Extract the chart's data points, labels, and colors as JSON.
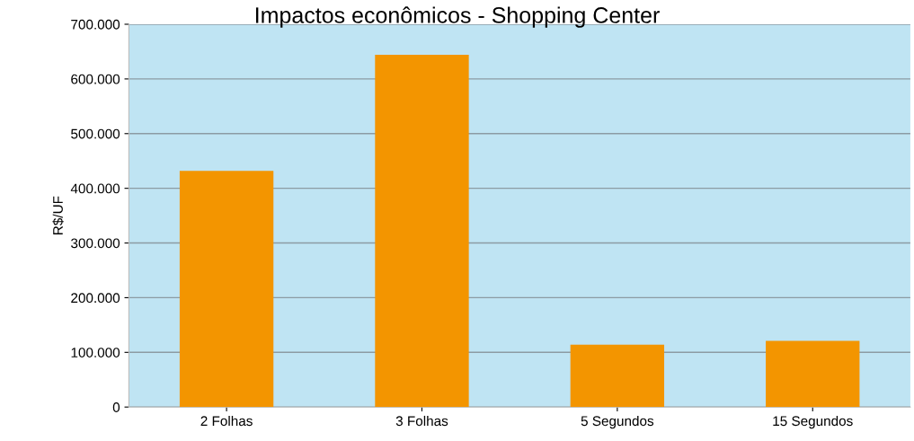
{
  "chart_data": {
    "type": "bar",
    "title": "Impactos econômicos - Shopping Center",
    "ylabel": "R$/UF",
    "categories": [
      "2 Folhas",
      "3 Folhas",
      "5 Segundos",
      "15 Segundos"
    ],
    "values": [
      432000,
      644000,
      114000,
      121000
    ],
    "color": "#f39500",
    "ylim": [
      0,
      700000
    ],
    "yticks": [
      {
        "value": 0,
        "label": "0"
      },
      {
        "value": 100000,
        "label": "100.000"
      },
      {
        "value": 200000,
        "label": "200.000"
      },
      {
        "value": 300000,
        "label": "300.000"
      },
      {
        "value": 400000,
        "label": "400.000"
      },
      {
        "value": 500000,
        "label": "500.000"
      },
      {
        "value": 600000,
        "label": "600.000"
      },
      {
        "value": 700000,
        "label": "700.000"
      }
    ],
    "grid": "y"
  }
}
